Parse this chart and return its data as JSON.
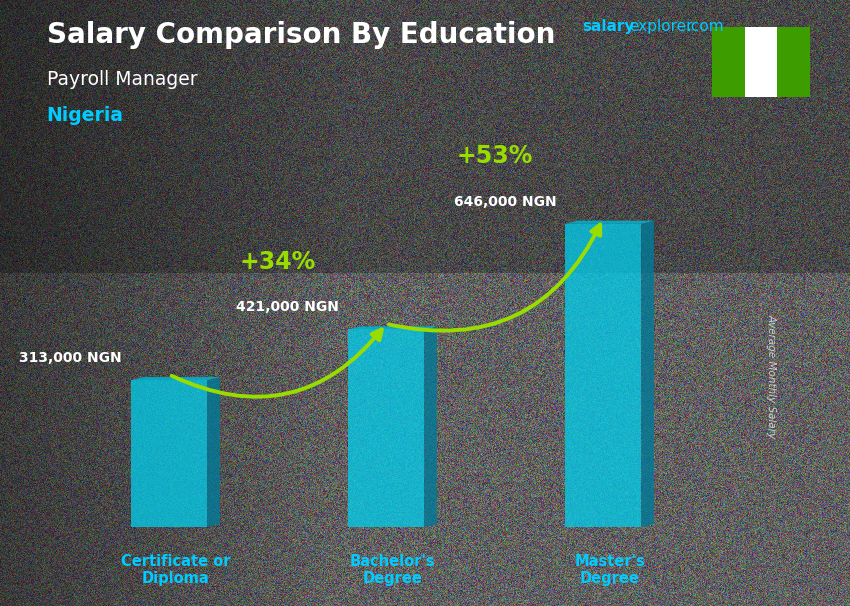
{
  "title_line1": "Salary Comparison By Education",
  "subtitle": "Payroll Manager",
  "country": "Nigeria",
  "categories": [
    "Certificate or\nDiploma",
    "Bachelor's\nDegree",
    "Master's\nDegree"
  ],
  "values": [
    313000,
    421000,
    646000
  ],
  "value_labels": [
    "313,000 NGN",
    "421,000 NGN",
    "646,000 NGN"
  ],
  "pct_labels": [
    "+34%",
    "+53%"
  ],
  "bar_color_face": "#00cfee",
  "bar_color_side": "#007a99",
  "bar_color_top": "#00b5d4",
  "arrow_color": "#99dd00",
  "title_color": "#ffffff",
  "subtitle_color": "#ffffff",
  "country_color": "#00ccff",
  "value_label_color": "#ffffff",
  "pct_color": "#99dd00",
  "axis_label_color": "#00ccff",
  "bg_color": "#555555",
  "ylabel_text": "Average Monthly Salary",
  "flag_green": "#3d9c00",
  "flag_white": "#ffffff",
  "ylim_max": 800000,
  "site_salary_color": "#00ccff",
  "site_explorer_color": "#00ccff",
  "site_com_color": "#00ccff"
}
